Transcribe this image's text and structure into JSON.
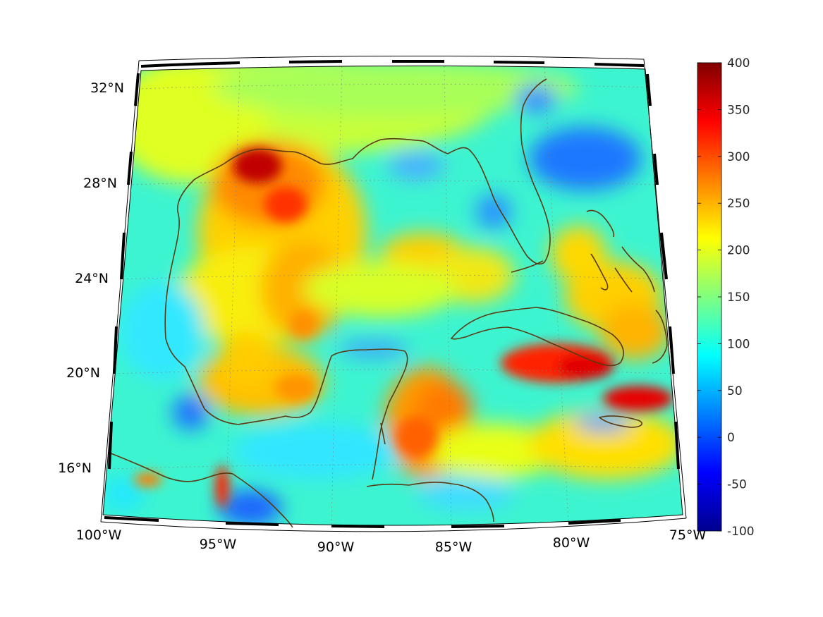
{
  "map": {
    "lon_range": [
      -100,
      -75
    ],
    "lat_range": [
      14,
      33
    ],
    "projection": "conic",
    "graticule": "dotted",
    "coastline_color": "#5a3a12",
    "colormap": "jet"
  },
  "axes": {
    "lon_labels": [
      "100°W",
      "95°W",
      "90°W",
      "85°W",
      "80°W",
      "75°W"
    ],
    "lat_labels": [
      "32°N",
      "28°N",
      "24°N",
      "20°N",
      "16°N"
    ]
  },
  "colorbar": {
    "min": -100,
    "max": 400,
    "ticks": [
      "400",
      "350",
      "300",
      "250",
      "200",
      "150",
      "100",
      "50",
      "0",
      "-50",
      "-100"
    ],
    "colors": [
      "#00008f",
      "#0000ff",
      "#0080ff",
      "#00ffff",
      "#80ff80",
      "#ffff00",
      "#ff8000",
      "#ff0000",
      "#800000"
    ]
  }
}
